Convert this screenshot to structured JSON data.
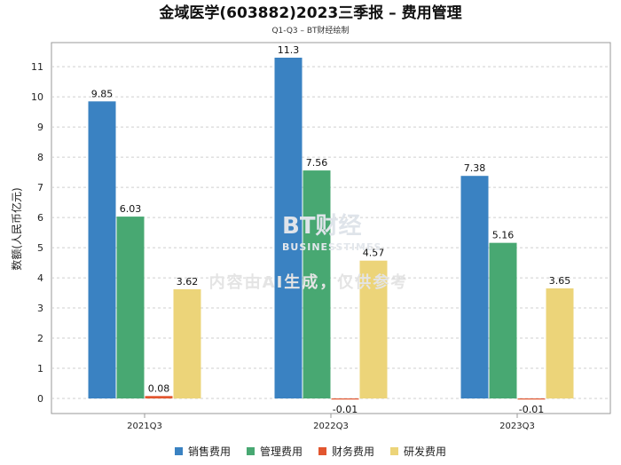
{
  "chart_data": {
    "type": "bar",
    "title": "金域医学(603882)2023三季报 – 费用管理",
    "subtitle": "Q1-Q3 – BT财经绘制",
    "ylabel": "数额(人民币亿元)",
    "xlabel": "",
    "categories": [
      "2021Q3",
      "2022Q3",
      "2023Q3"
    ],
    "ylim": [
      -0.5,
      11.8
    ],
    "yticks": [
      0,
      1,
      2,
      3,
      4,
      5,
      6,
      7,
      8,
      9,
      10,
      11
    ],
    "grid": true,
    "legend_position": "bottom",
    "series": [
      {
        "name": "销售费用",
        "color": "#3a82c2",
        "values": [
          9.85,
          11.3,
          7.38
        ],
        "labels": [
          "9.85",
          "11.3",
          "7.38"
        ]
      },
      {
        "name": "管理费用",
        "color": "#48a872",
        "values": [
          6.03,
          7.56,
          5.16
        ],
        "labels": [
          "6.03",
          "7.56",
          "5.16"
        ]
      },
      {
        "name": "财务费用",
        "color": "#e2562f",
        "values": [
          0.08,
          -0.01,
          -0.01
        ],
        "labels": [
          "0.08",
          "-0.01",
          "-0.01"
        ]
      },
      {
        "name": "研发费用",
        "color": "#ecd479",
        "values": [
          3.62,
          4.57,
          3.65
        ],
        "labels": [
          "3.62",
          "4.57",
          "3.65"
        ]
      }
    ]
  },
  "watermark": {
    "brand": "BT财经",
    "brand_en": "BUSINESSTIMES",
    "note": "内容由AI生成，仅供参考"
  }
}
